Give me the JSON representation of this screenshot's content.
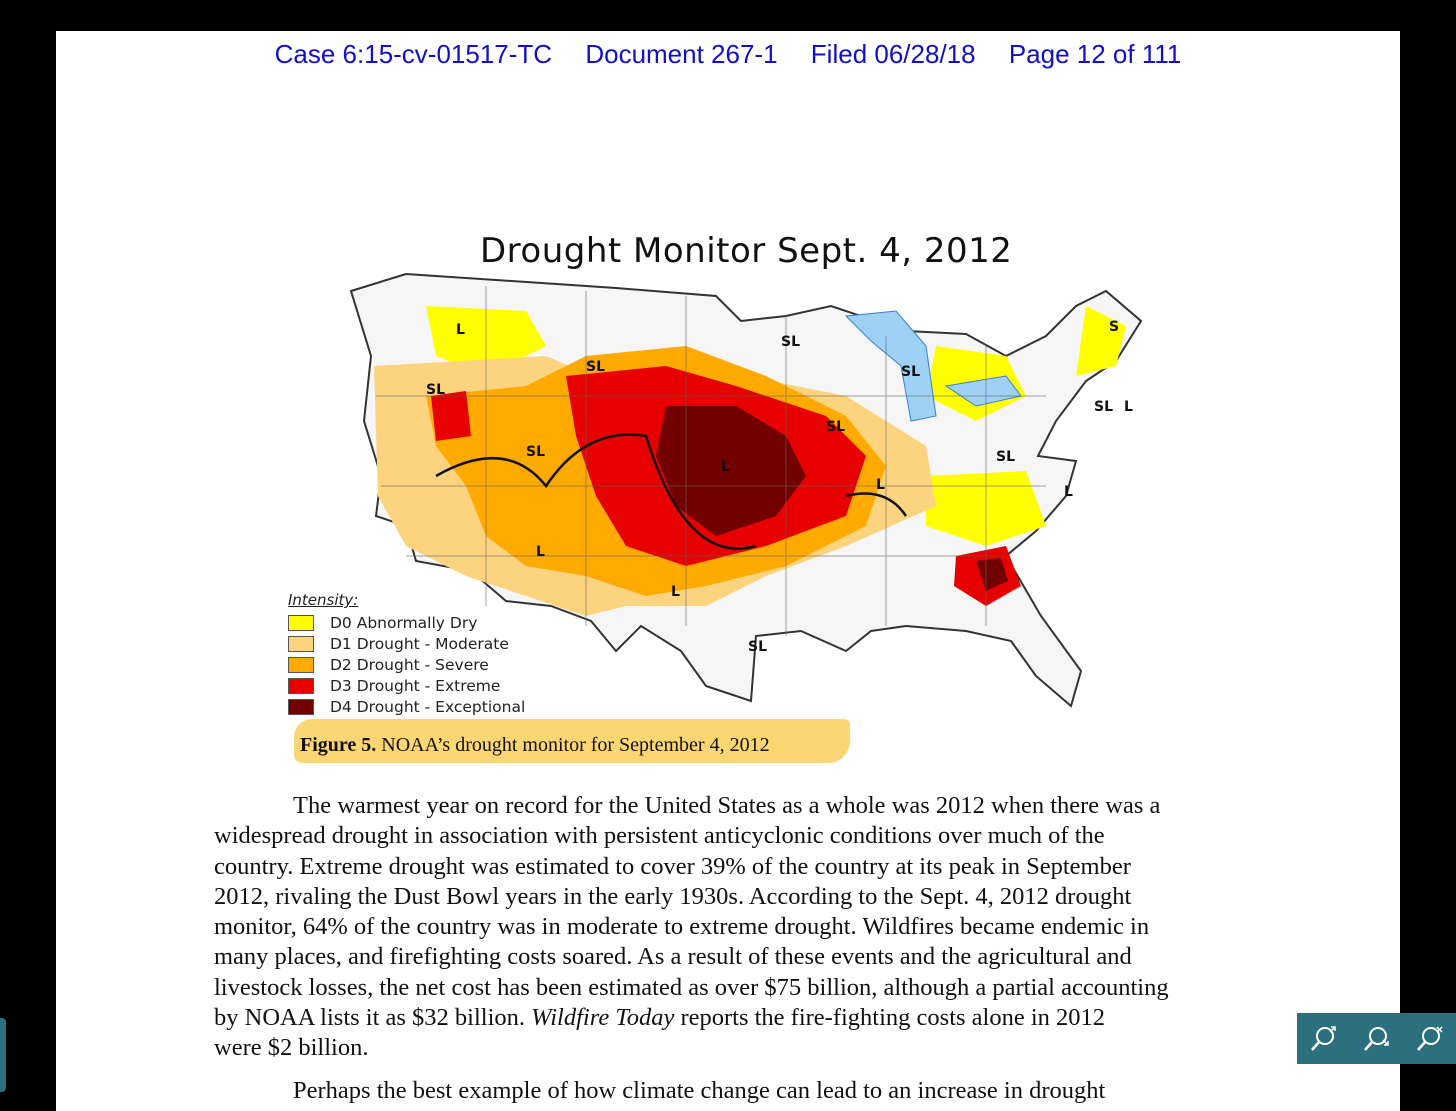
{
  "header": {
    "case": "Case 6:15-cv-01517-TC",
    "document": "Document 267-1",
    "filed": "Filed 06/28/18",
    "page": "Page 12 of 111"
  },
  "figure": {
    "map_title": "Drought Monitor  Sept. 4, 2012",
    "map_labels": [
      "L",
      "SL",
      "SL",
      "SL",
      "SL",
      "SL",
      "S",
      "SL",
      "L",
      "SL",
      "L",
      "L",
      "L",
      "SL",
      "L",
      "SL",
      "L"
    ],
    "legend": {
      "title": "Intensity:",
      "items": [
        {
          "label": "D0 Abnormally Dry",
          "color": "#ffff00"
        },
        {
          "label": "D1 Drought - Moderate",
          "color": "#fcd37f"
        },
        {
          "label": "D2 Drought - Severe",
          "color": "#ffaa00"
        },
        {
          "label": "D3 Drought - Extreme",
          "color": "#e60000"
        },
        {
          "label": "D4 Drought - Exceptional",
          "color": "#730000"
        }
      ]
    },
    "caption_bold": "Figure 5.",
    "caption_text": " NOAA’s drought monitor for September 4, 2012"
  },
  "body": {
    "lines": [
      "The warmest year on record for the United States as a whole was 2012 when there was a",
      "widespread drought in association with persistent anticyclonic conditions over much of the",
      "country.  Extreme drought was estimated to cover 39% of the country at its peak in September",
      "2012, rivaling the Dust Bowl years in the early 1930s.  According to the Sept. 4, 2012 drought",
      "monitor, 64% of the country was in moderate to extreme drought.   Wildfires became endemic in",
      "many places, and firefighting costs soared. As a result of these events and the agricultural and",
      "livestock losses, the net cost has been estimated as over $75 billion, although a partial accounting"
    ],
    "line8_pre": "by NOAA lists it as $32 billion.  ",
    "line8_italic": "Wildfire Today",
    "line8_post": " reports the fire-fighting costs alone in 2012",
    "line9": "were $2 billion.",
    "next_paragraph": "Perhaps the best example of how climate change can lead to an increase in drought"
  },
  "toolbar": {
    "icons": [
      "zoom-in-icon",
      "zoom-out-icon",
      "zoom-reset-icon"
    ],
    "color": "#2c6f7d"
  }
}
